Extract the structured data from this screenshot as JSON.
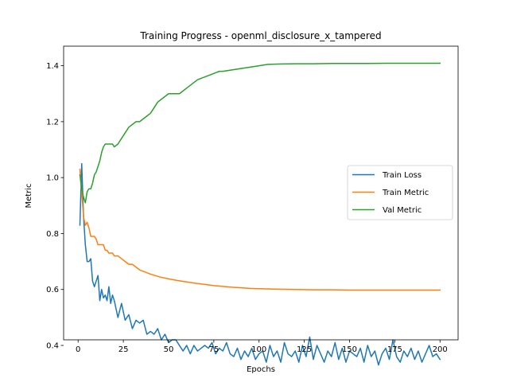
{
  "chart_data": {
    "type": "line",
    "title": "Training Progress - openml_disclosure_x_tampered",
    "xlabel": "Epochs",
    "ylabel": "Metric",
    "xlim": [
      -8,
      210
    ],
    "ylim": [
      0.42,
      1.47
    ],
    "xticks": [
      0,
      25,
      50,
      75,
      100,
      125,
      150,
      175,
      200
    ],
    "yticks": [
      0.4,
      0.6,
      0.8,
      1.0,
      1.2,
      1.4
    ],
    "ytick_labels": [
      "0.4",
      "0.6",
      "0.8",
      "1.0",
      "1.2",
      "1.4"
    ],
    "grid": false,
    "legend_position": "center-right",
    "series": [
      {
        "name": "Train Loss",
        "color": "#1f77b4",
        "x": [
          1,
          2,
          3,
          4,
          5,
          6,
          7,
          8,
          9,
          10,
          11,
          12,
          13,
          14,
          15,
          16,
          17,
          18,
          19,
          20,
          22,
          24,
          26,
          28,
          30,
          32,
          34,
          36,
          38,
          40,
          42,
          44,
          46,
          48,
          50,
          52,
          54,
          56,
          58,
          60,
          62,
          64,
          66,
          68,
          70,
          72,
          74,
          76,
          78,
          80,
          82,
          84,
          86,
          88,
          90,
          92,
          94,
          96,
          98,
          100,
          102,
          104,
          106,
          108,
          110,
          112,
          114,
          116,
          118,
          120,
          122,
          124,
          126,
          128,
          130,
          132,
          134,
          136,
          138,
          140,
          142,
          144,
          146,
          148,
          150,
          152,
          154,
          156,
          158,
          160,
          162,
          164,
          166,
          168,
          170,
          172,
          174,
          176,
          178,
          180,
          182,
          184,
          186,
          188,
          190,
          192,
          194,
          196,
          198,
          200
        ],
        "values": [
          0.83,
          1.05,
          0.86,
          0.76,
          0.7,
          0.7,
          0.71,
          0.63,
          0.61,
          0.63,
          0.65,
          0.56,
          0.6,
          0.57,
          0.58,
          0.56,
          0.61,
          0.55,
          0.58,
          0.56,
          0.5,
          0.55,
          0.49,
          0.51,
          0.46,
          0.49,
          0.48,
          0.49,
          0.44,
          0.45,
          0.44,
          0.46,
          0.42,
          0.44,
          0.41,
          0.42,
          0.42,
          0.4,
          0.38,
          0.4,
          0.37,
          0.4,
          0.38,
          0.39,
          0.4,
          0.39,
          0.41,
          0.37,
          0.39,
          0.38,
          0.41,
          0.37,
          0.36,
          0.39,
          0.35,
          0.38,
          0.36,
          0.39,
          0.35,
          0.37,
          0.38,
          0.34,
          0.4,
          0.36,
          0.38,
          0.34,
          0.41,
          0.37,
          0.36,
          0.38,
          0.34,
          0.4,
          0.36,
          0.43,
          0.35,
          0.4,
          0.37,
          0.34,
          0.38,
          0.36,
          0.41,
          0.35,
          0.39,
          0.34,
          0.38,
          0.37,
          0.36,
          0.39,
          0.34,
          0.4,
          0.36,
          0.38,
          0.33,
          0.37,
          0.39,
          0.35,
          0.42,
          0.36,
          0.34,
          0.38,
          0.36,
          0.39,
          0.35,
          0.38,
          0.34,
          0.37,
          0.4,
          0.36,
          0.37,
          0.35
        ]
      },
      {
        "name": "Train Metric",
        "color": "#ff7f0e",
        "x": [
          1,
          2,
          3,
          4,
          5,
          6,
          7,
          8,
          9,
          10,
          11,
          12,
          13,
          14,
          15,
          16,
          17,
          18,
          19,
          20,
          22,
          24,
          26,
          28,
          30,
          32,
          34,
          36,
          38,
          40,
          45,
          50,
          55,
          60,
          65,
          70,
          75,
          80,
          85,
          90,
          95,
          100,
          110,
          120,
          130,
          140,
          150,
          160,
          170,
          180,
          190,
          200
        ],
        "values": [
          1.03,
          0.95,
          0.86,
          0.83,
          0.84,
          0.82,
          0.79,
          0.79,
          0.79,
          0.78,
          0.76,
          0.76,
          0.76,
          0.76,
          0.74,
          0.74,
          0.73,
          0.73,
          0.73,
          0.72,
          0.72,
          0.71,
          0.7,
          0.69,
          0.69,
          0.68,
          0.67,
          0.665,
          0.66,
          0.655,
          0.645,
          0.638,
          0.632,
          0.627,
          0.622,
          0.618,
          0.614,
          0.611,
          0.608,
          0.606,
          0.604,
          0.603,
          0.601,
          0.6,
          0.599,
          0.599,
          0.598,
          0.598,
          0.598,
          0.598,
          0.598,
          0.598
        ]
      },
      {
        "name": "Val Metric",
        "color": "#2ca02c",
        "x": [
          1,
          2,
          3,
          4,
          5,
          6,
          7,
          8,
          9,
          10,
          11,
          12,
          13,
          14,
          15,
          16,
          17,
          18,
          19,
          20,
          22,
          24,
          26,
          28,
          30,
          32,
          34,
          36,
          38,
          40,
          42,
          44,
          46,
          48,
          50,
          52,
          54,
          56,
          58,
          60,
          62,
          64,
          66,
          68,
          70,
          72,
          74,
          76,
          78,
          80,
          85,
          90,
          95,
          100,
          105,
          110,
          120,
          130,
          140,
          150,
          160,
          170,
          180,
          190,
          200
        ],
        "values": [
          1.01,
          0.96,
          0.93,
          0.91,
          0.95,
          0.96,
          0.96,
          0.98,
          1.01,
          1.02,
          1.04,
          1.06,
          1.09,
          1.11,
          1.12,
          1.12,
          1.12,
          1.12,
          1.12,
          1.11,
          1.12,
          1.14,
          1.16,
          1.18,
          1.19,
          1.2,
          1.2,
          1.21,
          1.22,
          1.23,
          1.25,
          1.27,
          1.28,
          1.29,
          1.3,
          1.3,
          1.3,
          1.3,
          1.31,
          1.32,
          1.33,
          1.34,
          1.35,
          1.355,
          1.36,
          1.365,
          1.37,
          1.375,
          1.38,
          1.38,
          1.385,
          1.39,
          1.395,
          1.4,
          1.405,
          1.406,
          1.407,
          1.407,
          1.408,
          1.408,
          1.408,
          1.409,
          1.409,
          1.409,
          1.409
        ]
      }
    ]
  }
}
